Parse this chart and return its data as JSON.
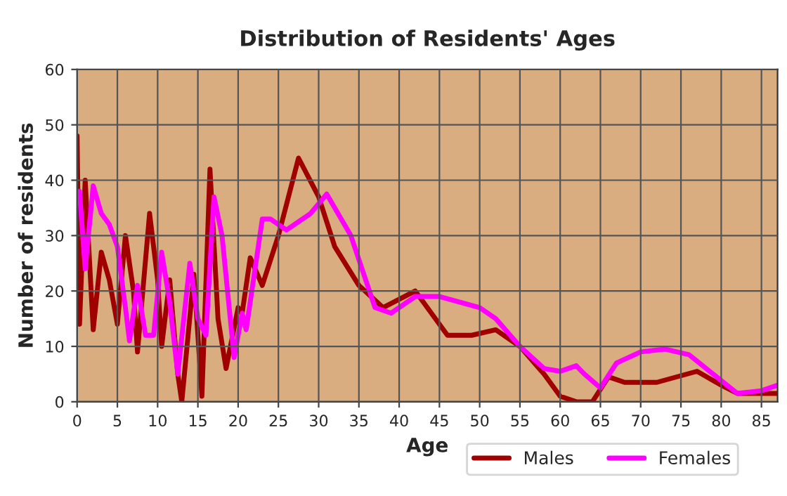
{
  "chart_data": {
    "type": "line",
    "title": "Distribution of Residents' Ages",
    "xlabel": "Age",
    "ylabel": "Number of residents",
    "xlim": [
      0,
      87
    ],
    "xticks": [
      0,
      5,
      10,
      15,
      20,
      25,
      30,
      35,
      40,
      45,
      50,
      55,
      60,
      65,
      70,
      75,
      80,
      85
    ],
    "ylim": [
      0,
      60
    ],
    "yticks": [
      0,
      10,
      20,
      30,
      40,
      50,
      60
    ],
    "grid": true,
    "legend": "bottom",
    "series": [
      {
        "name": "Males",
        "color": "#a00000",
        "x": [
          0,
          0.3,
          1,
          2,
          3,
          4,
          5,
          6,
          7,
          7.5,
          9,
          10,
          10.5,
          11.5,
          12.5,
          13,
          14.5,
          15.5,
          16.5,
          17.5,
          18.5,
          20,
          20.5,
          21.5,
          23,
          25,
          27.5,
          30,
          32,
          35,
          38,
          42,
          46,
          49,
          52,
          55,
          58,
          60,
          62,
          64,
          66,
          68,
          72,
          77,
          80,
          82,
          87
        ],
        "values": [
          48,
          14,
          40,
          13,
          27,
          22,
          14,
          30,
          20,
          9,
          34,
          22,
          10,
          22,
          5,
          0,
          23,
          1,
          42,
          15,
          6,
          17,
          16,
          26,
          21,
          30,
          44,
          37,
          28,
          21,
          17,
          20,
          12,
          12,
          13,
          10,
          5,
          1,
          0,
          0,
          4.5,
          3.5,
          3.5,
          5.5,
          3,
          1.5,
          1.5
        ]
      },
      {
        "name": "Females",
        "color": "#ff00ff",
        "x": [
          0.3,
          1,
          2,
          3,
          4,
          5,
          6,
          6.5,
          7.5,
          8.5,
          9.5,
          10.5,
          11.5,
          12.5,
          14,
          15,
          16,
          17,
          18,
          19.5,
          20.5,
          21,
          23,
          24,
          26,
          29,
          31,
          34,
          37,
          39,
          42,
          45,
          50,
          52,
          55,
          58,
          60,
          62,
          63,
          65,
          67,
          70,
          73,
          76,
          79,
          82,
          85,
          87
        ],
        "values": [
          38,
          24,
          39,
          34,
          32,
          28,
          17,
          11,
          21,
          12,
          12,
          27,
          18,
          5,
          25,
          15,
          12,
          37,
          30,
          8,
          16,
          13,
          33,
          33,
          31,
          34,
          37.5,
          30,
          17,
          16,
          19,
          19,
          17,
          15,
          10,
          6,
          5.5,
          6.5,
          5,
          2.5,
          7,
          9,
          9.5,
          8.5,
          5,
          1.5,
          2,
          3
        ]
      }
    ]
  }
}
